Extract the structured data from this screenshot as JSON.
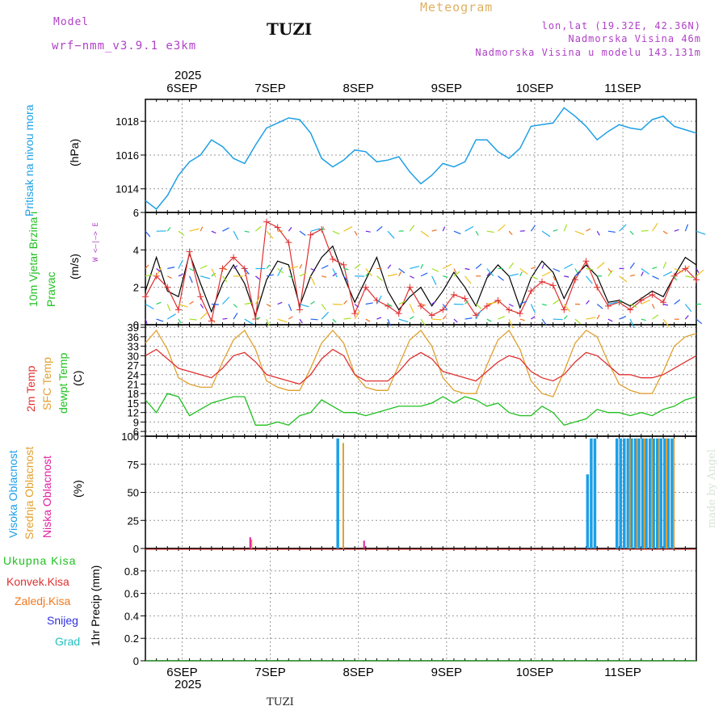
{
  "header": {
    "model_label": "Model",
    "model_name": "wrf−nmm_v3.9.1  e3km",
    "station": "TUZI",
    "meteogram": "Meteogram",
    "coords": "lon,lat (19.32E, 42.36N)",
    "elevation": "Nadmorska Visina 46m",
    "model_elevation": "Nadmorska Visina u modelu 143.131m"
  },
  "footer": {
    "station": "TUZI",
    "credit": "made by Angel"
  },
  "colors": {
    "pressure": "#1e9fe6",
    "wind_speed": "#000000",
    "gust": "#e03030",
    "temp2m": "#e03030",
    "sfc_temp": "#e0a030",
    "dewpoint": "#20c020",
    "cloud_high": "#1e9fe6",
    "cloud_mid": "#e0a030",
    "cloud_low": "#e020a0",
    "precip_total": "#20c020",
    "precip_conv": "#e03030",
    "precip_frozen": "#f07820",
    "precip_snow": "#3030e0",
    "precip_hail": "#20c0c0"
  },
  "chart_data": [
    {
      "type": "line",
      "title": "Pritisak na nivou mora",
      "ylabel": "(hPa)",
      "ylim": [
        1012.6,
        1019.3
      ],
      "yticks": [
        "1014",
        "1016",
        "1018"
      ],
      "x_start_hour": 0,
      "x_end_hour": 150,
      "x_categories": [
        "6SEP",
        "7SEP",
        "8SEP",
        "9SEP",
        "10SEP",
        "11SEP"
      ],
      "x_year": "2025",
      "series": [
        {
          "name": "Pritisak",
          "x": [
            0,
            3,
            6,
            9,
            12,
            15,
            18,
            21,
            24,
            27,
            30,
            33,
            36,
            39,
            42,
            45,
            48,
            51,
            54,
            57,
            60,
            63,
            66,
            69,
            72,
            75,
            78,
            81,
            84,
            87,
            90,
            93,
            96,
            99,
            102,
            105,
            108,
            111,
            114,
            117,
            120,
            123,
            126,
            129,
            132,
            135,
            138,
            141,
            144,
            147,
            150
          ],
          "values": [
            1013.3,
            1012.8,
            1013.6,
            1014.8,
            1015.6,
            1016.0,
            1016.9,
            1016.5,
            1015.8,
            1015.5,
            1016.6,
            1017.6,
            1017.9,
            1018.2,
            1018.1,
            1017.3,
            1015.8,
            1015.3,
            1015.7,
            1016.3,
            1016.2,
            1015.6,
            1015.7,
            1015.9,
            1015.0,
            1014.3,
            1014.8,
            1015.5,
            1015.3,
            1015.6,
            1016.9,
            1016.9,
            1016.2,
            1015.8,
            1016.4,
            1017.7,
            1017.8,
            1017.9,
            1018.8,
            1018.3,
            1017.7,
            1016.9,
            1017.4,
            1017.8,
            1017.6,
            1017.5,
            1018.1,
            1018.3,
            1017.7,
            1017.5,
            1017.3
          ]
        }
      ]
    },
    {
      "type": "line",
      "title": "10m Vjetar Brzina i Pravac",
      "ylabel": "(m/s)",
      "compass": "W <—|—> E",
      "ylim": [
        0,
        6
      ],
      "yticks": [
        "0",
        "2",
        "4",
        "6"
      ],
      "series": [
        {
          "name": "Brzina",
          "x": [
            0,
            3,
            6,
            9,
            12,
            15,
            18,
            21,
            24,
            27,
            30,
            33,
            36,
            39,
            42,
            45,
            48,
            51,
            54,
            57,
            60,
            63,
            66,
            69,
            72,
            75,
            78,
            81,
            84,
            87,
            90,
            93,
            96,
            99,
            102,
            105,
            108,
            111,
            114,
            117,
            120,
            123,
            126,
            129,
            132,
            135,
            138,
            141,
            144,
            147,
            150
          ],
          "values": [
            1.8,
            3.6,
            1.8,
            1.5,
            3.8,
            2.2,
            0.7,
            2.2,
            3.2,
            2.2,
            0.5,
            2.4,
            3.4,
            3.2,
            1.0,
            2.6,
            3.6,
            4.2,
            2.6,
            1.2,
            2.4,
            3.6,
            1.8,
            0.8,
            1.5,
            2.0,
            1.0,
            1.8,
            2.8,
            2.0,
            1.0,
            2.5,
            3.2,
            2.6,
            0.9,
            2.5,
            3.4,
            2.8,
            1.4,
            2.6,
            3.2,
            2.6,
            1.2,
            1.3,
            1.0,
            1.4,
            1.8,
            1.5,
            2.6,
            3.6,
            3.2
          ]
        },
        {
          "name": "Udari",
          "x": [
            0,
            3,
            6,
            9,
            12,
            15,
            18,
            21,
            24,
            27,
            30,
            33,
            36,
            39,
            42,
            45,
            48,
            51,
            54,
            57,
            60,
            63,
            66,
            69,
            72,
            75,
            78,
            81,
            84,
            87,
            90,
            93,
            96,
            99,
            102,
            105,
            108,
            111,
            114,
            117,
            120,
            123,
            126,
            129,
            132,
            135,
            138,
            141,
            144,
            147,
            150
          ],
          "values": [
            1.5,
            2.6,
            2.0,
            0.8,
            3.9,
            1.5,
            0.2,
            3.0,
            3.6,
            3.0,
            0.3,
            5.5,
            5.2,
            4.4,
            0.8,
            4.8,
            5.1,
            3.5,
            3.2,
            0.6,
            2.0,
            1.3,
            1.0,
            0.6,
            2.0,
            1.0,
            0.5,
            0.8,
            1.6,
            1.4,
            0.5,
            1.0,
            1.3,
            0.8,
            0.6,
            1.8,
            2.3,
            2.1,
            0.8,
            2.4,
            3.4,
            2.0,
            1.0,
            1.2,
            0.8,
            1.3,
            1.6,
            1.2,
            2.6,
            3.0,
            2.4
          ]
        }
      ]
    },
    {
      "type": "line",
      "title": "2m Temp / SFC Temp / dewpt Temp",
      "ylabel": "(C)",
      "ylim": [
        4.5,
        39.8
      ],
      "yticks": [
        "6",
        "9",
        "12",
        "15",
        "18",
        "21",
        "24",
        "27",
        "30",
        "33",
        "36",
        "39"
      ],
      "series": [
        {
          "name": "2m Temp",
          "x": [
            0,
            3,
            6,
            9,
            12,
            15,
            18,
            21,
            24,
            27,
            30,
            33,
            36,
            39,
            42,
            45,
            48,
            51,
            54,
            57,
            60,
            63,
            66,
            69,
            72,
            75,
            78,
            81,
            84,
            87,
            90,
            93,
            96,
            99,
            102,
            105,
            108,
            111,
            114,
            117,
            120,
            123,
            126,
            129,
            132,
            135,
            138,
            141,
            144,
            147,
            150
          ],
          "values": [
            30,
            32,
            29,
            26,
            25,
            24,
            23,
            26,
            30,
            31,
            28,
            24,
            23,
            22,
            21,
            24,
            29,
            32,
            30,
            24,
            22,
            22,
            22,
            25,
            29,
            31,
            29,
            25,
            24,
            23,
            22,
            25,
            28,
            30,
            29,
            25,
            23,
            22,
            24,
            28,
            31,
            30,
            27,
            24,
            24,
            23,
            23,
            24,
            26,
            28,
            30
          ]
        },
        {
          "name": "SFC Temp",
          "x": [
            0,
            3,
            6,
            9,
            12,
            15,
            18,
            21,
            24,
            27,
            30,
            33,
            36,
            39,
            42,
            45,
            48,
            51,
            54,
            57,
            60,
            63,
            66,
            69,
            72,
            75,
            78,
            81,
            84,
            87,
            90,
            93,
            96,
            99,
            102,
            105,
            108,
            111,
            114,
            117,
            120,
            123,
            126,
            129,
            132,
            135,
            138,
            141,
            144,
            147,
            150
          ],
          "values": [
            34,
            38,
            32,
            23,
            21,
            20,
            20,
            28,
            35,
            38,
            32,
            22,
            20,
            19,
            19,
            26,
            34,
            38,
            34,
            24,
            20,
            19,
            19,
            27,
            35,
            38,
            33,
            23,
            19,
            18,
            18,
            27,
            35,
            38,
            32,
            22,
            18,
            17,
            25,
            34,
            38,
            36,
            28,
            21,
            19,
            18,
            18,
            25,
            33,
            36,
            37
          ]
        },
        {
          "name": "dewpt Temp",
          "x": [
            0,
            3,
            6,
            9,
            12,
            15,
            18,
            21,
            24,
            27,
            30,
            33,
            36,
            39,
            42,
            45,
            48,
            51,
            54,
            57,
            60,
            63,
            66,
            69,
            72,
            75,
            78,
            81,
            84,
            87,
            90,
            93,
            96,
            99,
            102,
            105,
            108,
            111,
            114,
            117,
            120,
            123,
            126,
            129,
            132,
            135,
            138,
            141,
            144,
            147,
            150
          ],
          "values": [
            16,
            12,
            18,
            17,
            11,
            13,
            15,
            16,
            17,
            17,
            8,
            8,
            9,
            8,
            11,
            12,
            16,
            14,
            12,
            12,
            11,
            12,
            13,
            14,
            14,
            14,
            15,
            17,
            15,
            17,
            16,
            14,
            15,
            12,
            11,
            11,
            14,
            12,
            8,
            9,
            10,
            13,
            12,
            12,
            11,
            12,
            11,
            13,
            14,
            16,
            17
          ]
        }
      ]
    },
    {
      "type": "bar",
      "title": "Visoka Oblacnost / Srednja Oblacnost / Niska Oblacnost",
      "ylabel": "(%)",
      "ylim": [
        0,
        100
      ],
      "yticks": [
        "0",
        "25",
        "50",
        "75",
        "100"
      ],
      "series": [
        {
          "name": "Visoka Oblacnost",
          "hours": [
            52,
            120,
            121,
            122,
            128,
            129,
            130,
            131,
            132,
            133,
            134,
            135,
            136,
            137,
            138,
            139,
            140,
            141,
            142,
            143
          ],
          "values": [
            98,
            66,
            98,
            98,
            98,
            98,
            98,
            98,
            98,
            98,
            98,
            98,
            98,
            98,
            98,
            98,
            98,
            98,
            98,
            98
          ]
        },
        {
          "name": "Srednja Oblacnost",
          "hours": [
            28,
            53,
            131,
            133,
            135,
            137,
            139,
            141,
            143
          ],
          "values": [
            8,
            94,
            98,
            98,
            98,
            98,
            98,
            98,
            98
          ]
        },
        {
          "name": "Niska Oblacnost",
          "hours": [
            27,
            58
          ],
          "values": [
            10,
            7
          ]
        }
      ]
    },
    {
      "type": "bar",
      "title": "1hr Precip",
      "ylabel": "1hr Precip (mm)",
      "ylim": [
        0,
        1.0
      ],
      "yticks": [
        "0",
        "0.2",
        "0.4",
        "0.6",
        "0.8"
      ],
      "legend": [
        "Ukupna Kisa",
        "Konvek.Kisa",
        "Zaledj.Kisa",
        "Snijeg",
        "Grad"
      ],
      "values": []
    }
  ]
}
